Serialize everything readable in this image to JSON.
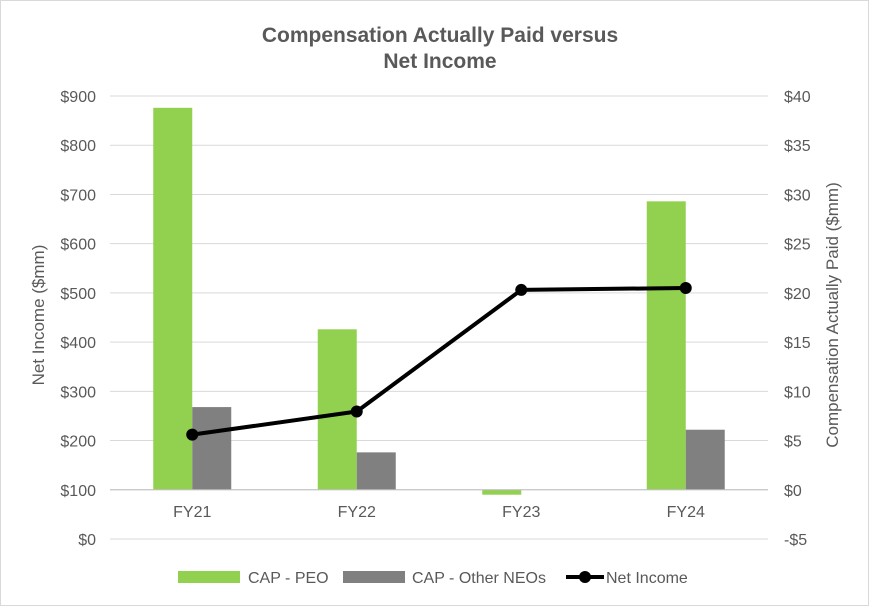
{
  "chart_data": {
    "type": "bar+line",
    "title_lines": [
      "Compensation Actually Paid versus",
      "Net Income"
    ],
    "categories": [
      "FY21",
      "FY22",
      "FY23",
      "FY24"
    ],
    "left_axis": {
      "label": "Net Income ($mm)",
      "range": [
        0,
        900
      ],
      "ticks": [
        0,
        100,
        200,
        300,
        400,
        500,
        600,
        700,
        800,
        900
      ],
      "tick_labels": [
        "$0",
        "$100",
        "$200",
        "$300",
        "$400",
        "$500",
        "$600",
        "$700",
        "$800",
        "$900"
      ]
    },
    "right_axis": {
      "label": "Compensation Actually Paid ($mm)",
      "range": [
        -5,
        40
      ],
      "ticks": [
        -5,
        0,
        5,
        10,
        15,
        20,
        25,
        30,
        35,
        40
      ],
      "tick_labels": [
        "-$5",
        "$0",
        "$5",
        "$10",
        "$15",
        "$20",
        "$25",
        "$30",
        "$35",
        "$40"
      ]
    },
    "series": [
      {
        "name": "CAP - PEO",
        "kind": "bar",
        "axis": "right",
        "color": "#92d050",
        "values": [
          38.8,
          16.3,
          -0.5,
          29.3
        ]
      },
      {
        "name": "CAP - Other NEOs",
        "kind": "bar",
        "axis": "right",
        "color": "#808080",
        "values": [
          8.4,
          3.8,
          0,
          6.1
        ]
      },
      {
        "name": "Net Income",
        "kind": "line",
        "axis": "left",
        "color": "#000000",
        "values": [
          212,
          259,
          506,
          510
        ]
      }
    ],
    "grid": true,
    "legend_position": "bottom"
  }
}
